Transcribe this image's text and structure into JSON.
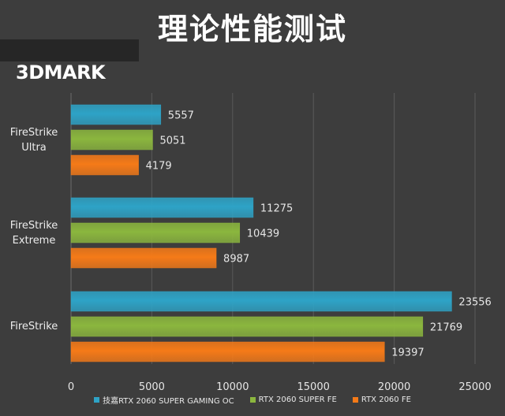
{
  "title": "理论性能测试",
  "benchmark_label": "3DMARK",
  "colors": {
    "background": "#3d3d3d",
    "grid": "#5a5a5a",
    "axis_text": "#e6e6e6",
    "series": [
      "#2ea3c6",
      "#8bb63e",
      "#f57a18"
    ]
  },
  "chart_data": {
    "type": "bar",
    "orientation": "horizontal",
    "title": "理论性能测试",
    "categories": [
      "FireStrike\nUltra",
      "FireStrike\nExtreme",
      "FireStrike"
    ],
    "series": [
      {
        "name": "技嘉RTX 2060 SUPER GAMING OC",
        "values": [
          5557,
          11275,
          23556
        ]
      },
      {
        "name": "RTX 2060 SUPER FE",
        "values": [
          5051,
          10439,
          21769
        ]
      },
      {
        "name": "RTX 2060 FE",
        "values": [
          4179,
          8987,
          19397
        ]
      }
    ],
    "xlim": [
      0,
      25000
    ],
    "xticks": [
      "0",
      "5000",
      "10000",
      "15000",
      "20000",
      "25000"
    ],
    "xlabel": "",
    "ylabel": "",
    "grid": true,
    "legend_position": "bottom"
  }
}
